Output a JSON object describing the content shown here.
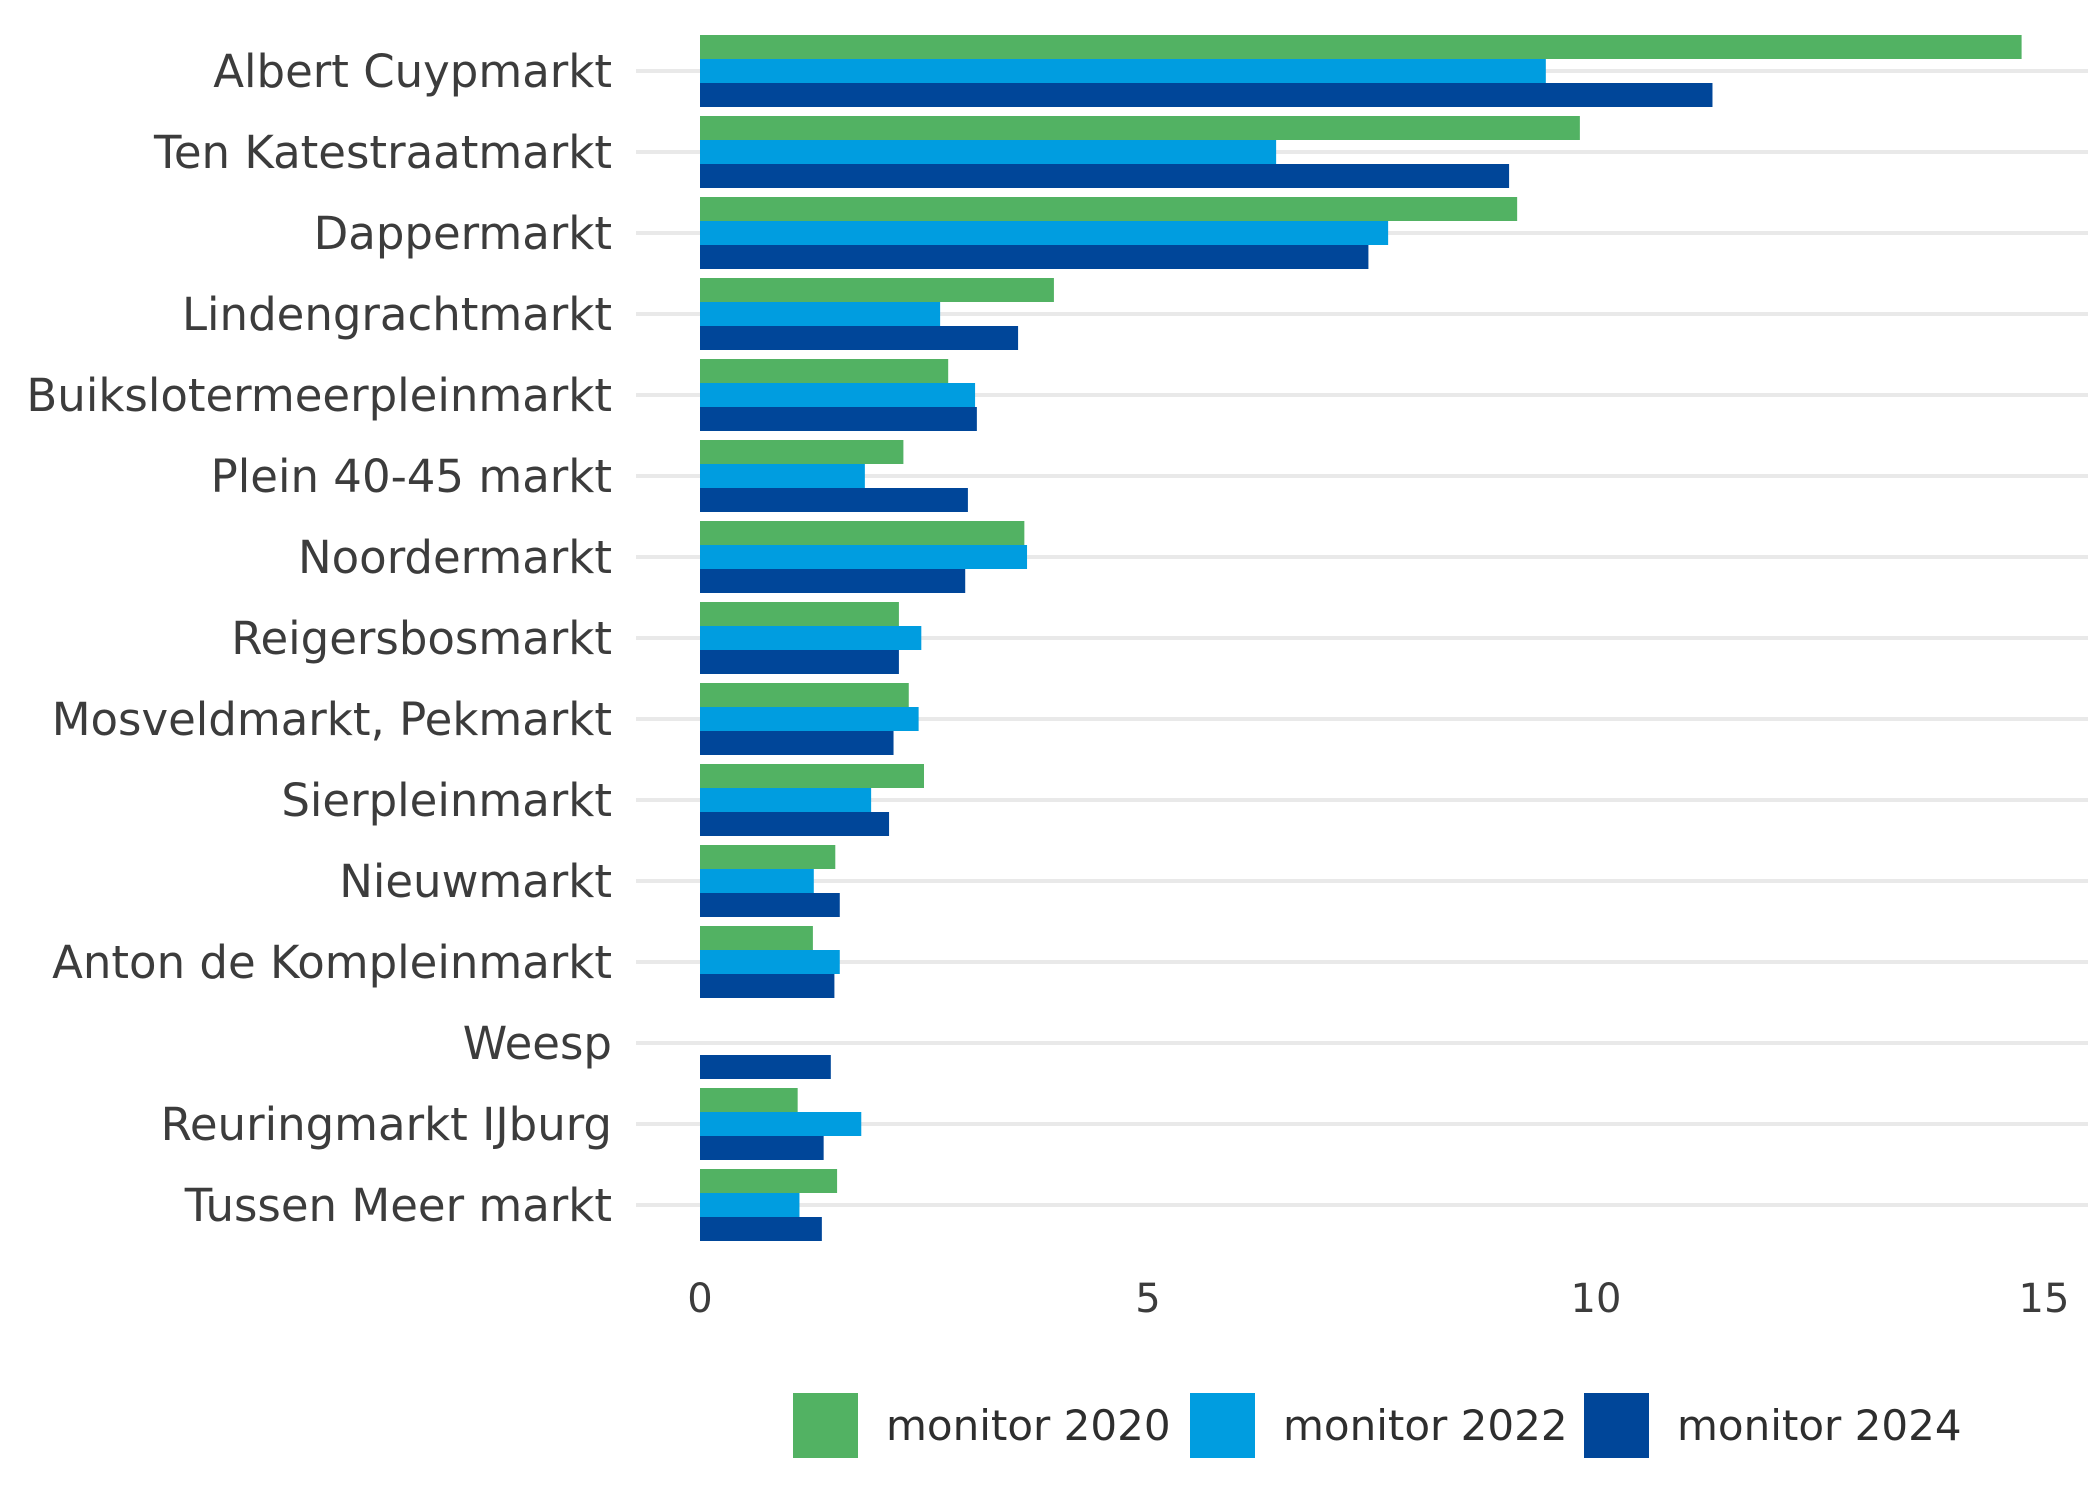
{
  "chart_data": {
    "type": "bar",
    "orientation": "horizontal",
    "title": "",
    "xlabel": "",
    "ylabel": "",
    "xlim": [
      0,
      15.5
    ],
    "xticks": [
      0,
      5,
      10,
      15
    ],
    "grid": true,
    "legend_position": "bottom",
    "categories": [
      "Albert Cuypmarkt",
      "Ten Katestraatmarkt",
      "Dappermarkt",
      "Lindengrachtmarkt",
      "Buikslotermeerpleinmarkt",
      "Plein 40-45 markt",
      "Noordermarkt",
      "Reigersbosmarkt",
      "Mosveldmarkt, Pekmarkt",
      "Sierpleinmarkt",
      "Nieuwmarkt",
      "Anton de Kompleinmarkt",
      "Weesp",
      "Reuringmarkt IJburg",
      "Tussen Meer markt"
    ],
    "series": [
      {
        "name": "monitor 2020",
        "color": "#52b263",
        "values": [
          14.75,
          9.82,
          9.12,
          3.95,
          2.77,
          2.27,
          3.62,
          2.22,
          2.33,
          2.5,
          1.51,
          1.26,
          null,
          1.09,
          1.53
        ]
      },
      {
        "name": "monitor 2022",
        "color": "#009de0",
        "values": [
          9.44,
          6.43,
          7.68,
          2.68,
          3.07,
          1.84,
          3.65,
          2.47,
          2.44,
          1.91,
          1.27,
          1.56,
          null,
          1.8,
          1.11
        ]
      },
      {
        "name": "monitor 2024",
        "color": "#004699",
        "values": [
          11.3,
          9.03,
          7.46,
          3.55,
          3.09,
          2.99,
          2.96,
          2.22,
          2.16,
          2.11,
          1.56,
          1.5,
          1.46,
          1.38,
          1.36
        ]
      }
    ]
  }
}
